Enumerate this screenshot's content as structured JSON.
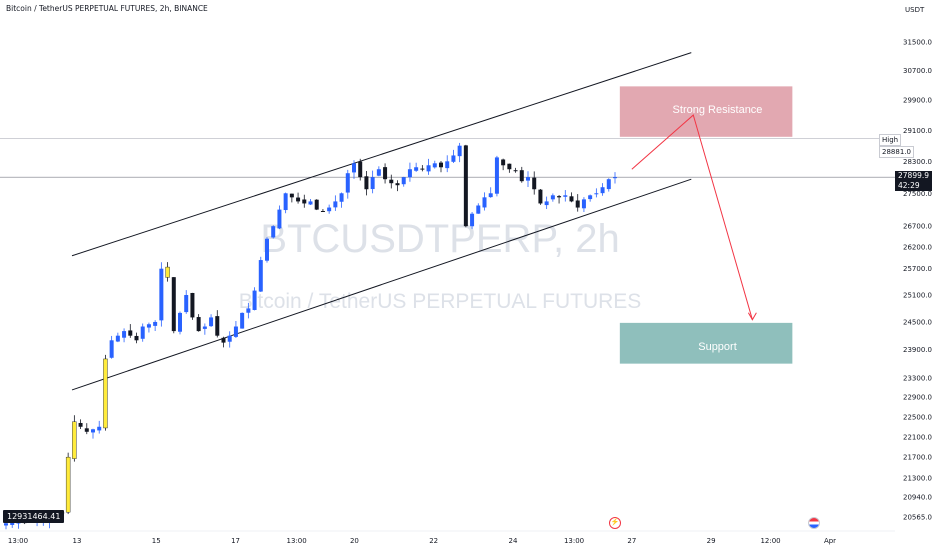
{
  "header": {
    "symbol_title": "Bitcoin / TetherUS PERPETUAL FUTURES, 2h, BINANCE"
  },
  "watermark": {
    "ticker": "BTCUSDTPERP, 2h",
    "description": "Bitcoin / TetherUS PERPETUAL FUTURES"
  },
  "price_axis": {
    "currency": "USDT",
    "current_price": "27899.9",
    "countdown": "42:29",
    "high_label": "High",
    "high_value": "28881.0"
  },
  "volume_readout": "12931464.41",
  "zones": {
    "resistance_label": "Strong Resistance",
    "support_label": "Support"
  },
  "colors": {
    "up_candle": "#2962ff",
    "down_candle": "#131722",
    "highlight_candle": "#ffeb3b",
    "resistance_zone": "#d88b97",
    "support_zone": "#6aa9a6",
    "arrow": "#f23645",
    "channel_line": "#131722"
  },
  "events": {
    "flash_icon": "flash-icon",
    "us_flag_icon": "us-flag-icon"
  },
  "chart_data": {
    "type": "candlestick",
    "y_scale": "log",
    "ylim": [
      20400,
      32200
    ],
    "y_ticks": [
      31500,
      30700,
      29900,
      29100,
      28300,
      27500,
      26700,
      26200,
      25700,
      25100,
      24500,
      23900,
      23300,
      22900,
      22500,
      22100,
      21700,
      21300,
      20940,
      20565
    ],
    "y_tick_labels": [
      "31500.0",
      "30700.0",
      "29900.0",
      "29100.0",
      "28300.0",
      "27500.0",
      "26700.0",
      "26200.0",
      "25700.0",
      "25100.0",
      "24500.0",
      "23900.0",
      "23300.0",
      "22900.0",
      "22500.0",
      "22100.0",
      "21700.0",
      "21300.0",
      "20940.0",
      "20565.0"
    ],
    "x_ticks": [
      "13:00",
      "13",
      "15",
      "17",
      "13:00",
      "20",
      "22",
      "24",
      "13:00",
      "27",
      "29",
      "12:00",
      "Apr"
    ],
    "x_tick_dates": [
      "2023-03-12 13:00",
      "2023-03-13",
      "2023-03-15",
      "2023-03-17",
      "2023-03-18 13:00",
      "2023-03-20",
      "2023-03-22",
      "2023-03-24",
      "2023-03-25 13:00",
      "2023-03-27",
      "2023-03-29",
      "2023-03-30 12:00",
      "2023-04-01"
    ],
    "anchors": [
      [
        0,
        20450
      ],
      [
        3,
        20470
      ],
      [
        6,
        20500
      ],
      [
        9,
        20650
      ],
      [
        10,
        21700
      ],
      [
        11,
        22400
      ],
      [
        13,
        22200
      ],
      [
        15,
        22300
      ],
      [
        16,
        23700
      ],
      [
        17,
        24100
      ],
      [
        19,
        24300
      ],
      [
        21,
        24100
      ],
      [
        22,
        24400
      ],
      [
        24,
        24500
      ],
      [
        25,
        25700
      ],
      [
        26,
        25500
      ],
      [
        27,
        24300
      ],
      [
        28,
        24700
      ],
      [
        29,
        25100
      ],
      [
        30,
        24600
      ],
      [
        31,
        24300
      ],
      [
        32,
        24400
      ],
      [
        33,
        24600
      ],
      [
        34,
        24200
      ],
      [
        35,
        24050
      ],
      [
        36,
        24200
      ],
      [
        37,
        24400
      ],
      [
        38,
        24700
      ],
      [
        39,
        24800
      ],
      [
        40,
        25200
      ],
      [
        41,
        25900
      ],
      [
        42,
        26400
      ],
      [
        43,
        26700
      ],
      [
        44,
        27100
      ],
      [
        45,
        27500
      ],
      [
        46,
        27400
      ],
      [
        47,
        27300
      ],
      [
        48,
        27250
      ],
      [
        49,
        27300
      ],
      [
        50,
        27100
      ],
      [
        51,
        27050
      ],
      [
        52,
        27150
      ],
      [
        53,
        27300
      ],
      [
        54,
        27500
      ],
      [
        55,
        28000
      ],
      [
        56,
        28250
      ],
      [
        57,
        27900
      ],
      [
        58,
        27600
      ],
      [
        59,
        27900
      ],
      [
        60,
        28100
      ],
      [
        61,
        27850
      ],
      [
        62,
        27750
      ],
      [
        63,
        27700
      ],
      [
        64,
        27900
      ],
      [
        65,
        28100
      ],
      [
        66,
        28150
      ],
      [
        67,
        28100
      ],
      [
        68,
        28200
      ],
      [
        69,
        28250
      ],
      [
        70,
        28150
      ],
      [
        71,
        28300
      ],
      [
        72,
        28450
      ],
      [
        73,
        28700
      ],
      [
        74,
        26700
      ],
      [
        75,
        27000
      ],
      [
        76,
        27200
      ],
      [
        77,
        27400
      ],
      [
        78,
        27500
      ],
      [
        79,
        28400
      ],
      [
        80,
        28200
      ],
      [
        81,
        28100
      ],
      [
        82,
        28050
      ],
      [
        83,
        27800
      ],
      [
        84,
        27900
      ],
      [
        85,
        27600
      ],
      [
        86,
        27250
      ],
      [
        87,
        27300
      ],
      [
        88,
        27450
      ],
      [
        89,
        27400
      ],
      [
        90,
        27450
      ],
      [
        91,
        27300
      ],
      [
        92,
        27150
      ],
      [
        93,
        27350
      ],
      [
        94,
        27450
      ],
      [
        95,
        27500
      ],
      [
        96,
        27650
      ],
      [
        97,
        27850
      ],
      [
        98,
        27900
      ]
    ],
    "channel": {
      "upper": [
        {
          "date": "2023-03-13",
          "price": 26000
        },
        {
          "date": "2023-03-28 12:00",
          "price": 31200
        }
      ],
      "lower": [
        {
          "date": "2023-03-13",
          "price": 23050
        },
        {
          "date": "2023-03-28 12:00",
          "price": 27850
        }
      ]
    },
    "resistance_zone": {
      "from": "2023-03-27",
      "to": "2023-03-31",
      "price_low": 28930,
      "price_high": 30270
    },
    "support_zone": {
      "from": "2023-03-27",
      "to": "2023-03-31",
      "price_low": 23600,
      "price_high": 24480
    },
    "arrow_path": [
      {
        "date": "2023-03-27",
        "price": 28100
      },
      {
        "date": "2023-03-28 12:00",
        "price": 29500
      },
      {
        "date": "2023-03-30 01:00",
        "price": 24550
      }
    ]
  }
}
